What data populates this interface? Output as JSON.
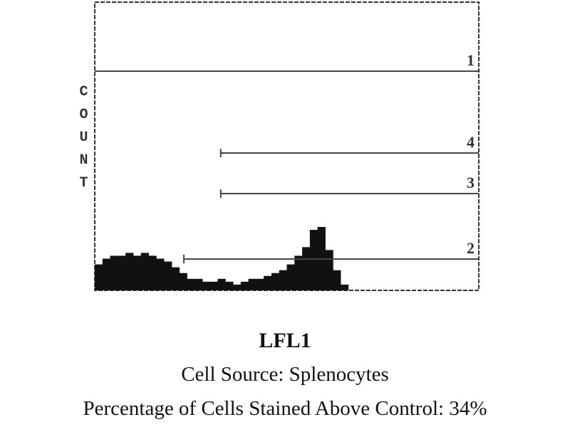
{
  "chart_data": {
    "type": "bar",
    "title": "LFL1",
    "ylabel": "COUNT",
    "xlabel": "",
    "ylim": [
      0,
      100
    ],
    "bins": [
      0,
      1,
      2,
      3,
      4,
      5,
      6,
      7,
      8,
      9,
      10,
      11,
      12,
      13,
      14,
      15,
      16,
      17,
      18,
      19,
      20,
      21,
      22,
      23,
      24,
      25,
      26,
      27,
      28,
      29,
      30,
      31,
      32,
      33,
      34,
      35,
      36,
      37,
      38,
      39,
      40,
      41,
      42,
      43,
      44,
      45,
      46,
      47,
      48,
      49
    ],
    "values": [
      9,
      11,
      12,
      12,
      13,
      12,
      13,
      12,
      11,
      10,
      8,
      6,
      4,
      4,
      3,
      3,
      4,
      3,
      2,
      3,
      4,
      4,
      5,
      6,
      7,
      9,
      12,
      15,
      21,
      22,
      14,
      7,
      2,
      0,
      0,
      0,
      0,
      0,
      0,
      0,
      0,
      0,
      0,
      0,
      0,
      0,
      0,
      0,
      0,
      0
    ],
    "markers": [
      {
        "label": "1",
        "start_bin": 0,
        "end_bin": 50
      },
      {
        "label": "4",
        "start_bin": 16.4,
        "end_bin": 50
      },
      {
        "label": "3",
        "start_bin": 16.4,
        "end_bin": 50
      },
      {
        "label": "2",
        "start_bin": 11.6,
        "end_bin": 50
      }
    ],
    "grid": false,
    "color": "#111111"
  },
  "caption": {
    "title": "LFL1",
    "cell_source": "Cell Source:  Splenocytes",
    "percentage": "Percentage of Cells Stained Above Control:  34%"
  }
}
